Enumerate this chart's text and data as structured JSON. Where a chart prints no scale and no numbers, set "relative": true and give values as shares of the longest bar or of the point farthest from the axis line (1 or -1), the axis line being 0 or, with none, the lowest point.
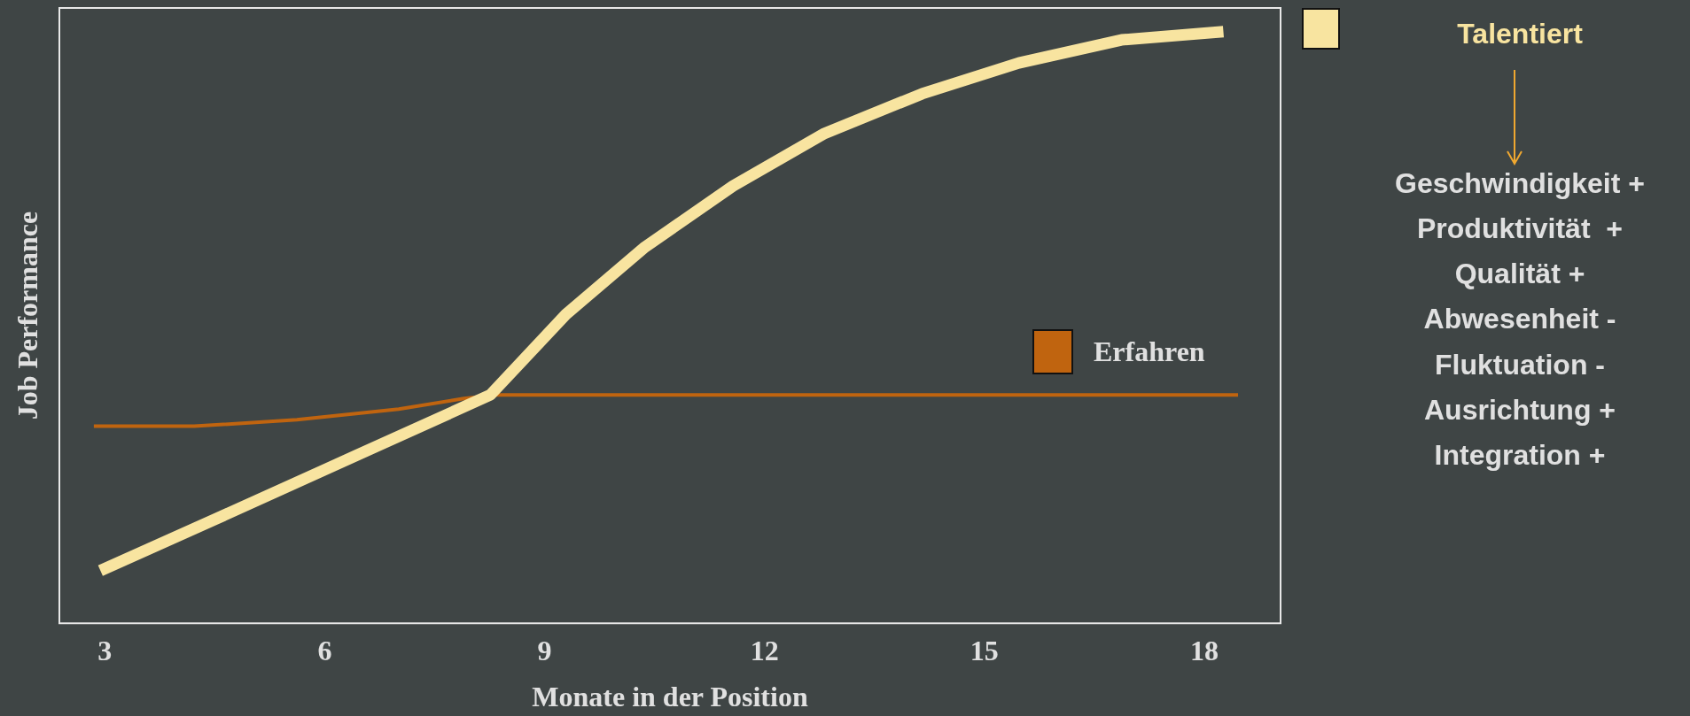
{
  "chart_data": {
    "type": "line",
    "xlabel": "Monate in der Position",
    "ylabel": "Job Performance",
    "relative": true,
    "xlim": [
      2.38,
      19.04
    ],
    "xticks": [
      3,
      6,
      9,
      12,
      15,
      18
    ],
    "grid": false,
    "legend": "right",
    "marker": "none",
    "line_style": "solid",
    "series": [
      {
        "name": "Talentiert",
        "color": "#f8e4a0",
        "x": [
          2.94,
          4.51,
          5.99,
          8.26,
          9.29,
          10.37,
          11.57,
          12.82,
          14.15,
          15.47,
          16.87,
          18.26
        ],
        "values": [
          0.089,
          0.176,
          0.259,
          0.386,
          0.522,
          0.636,
          0.739,
          0.828,
          0.895,
          0.947,
          0.986,
          1.0
        ]
      },
      {
        "name": "Erfahren",
        "color": "#c0640f",
        "x": [
          2.85,
          4.22,
          5.62,
          7.01,
          7.9,
          8.34,
          18.46
        ],
        "values": [
          0.333,
          0.333,
          0.344,
          0.362,
          0.38,
          0.386,
          0.386
        ]
      }
    ],
    "annotations": [
      "Geschwindigkeit +",
      "Produktivität  +",
      "Qualität +",
      "Abwesenheit -",
      "Fluktuation -",
      "Ausrichtung +",
      "Integration +"
    ]
  }
}
